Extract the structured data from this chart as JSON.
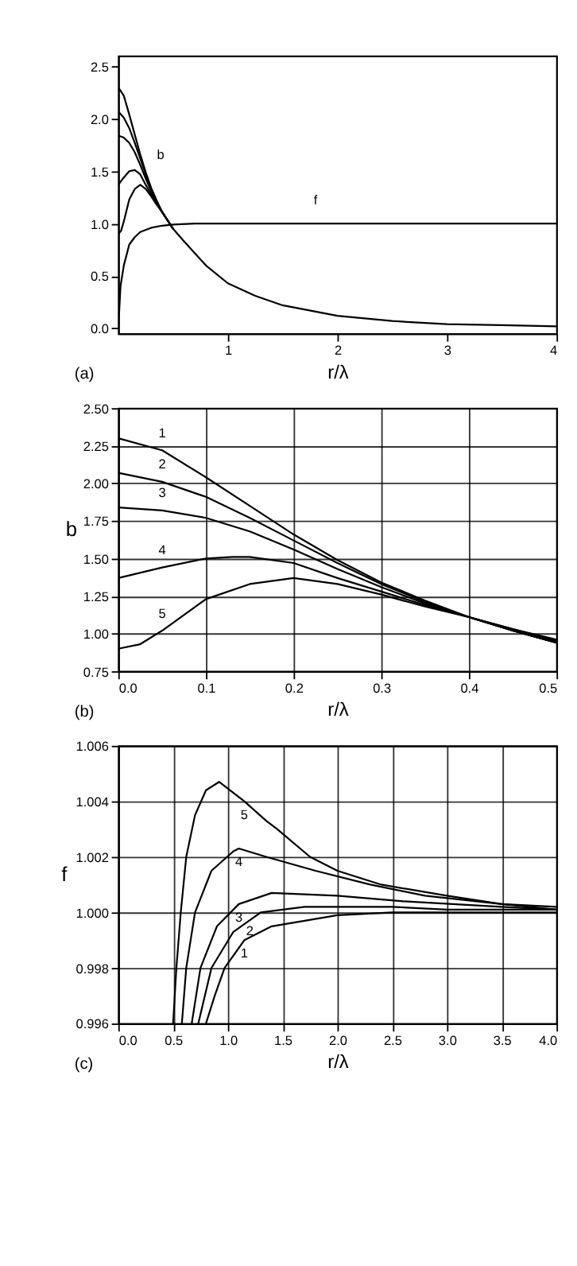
{
  "chart_data": [
    {
      "type": "line",
      "xlabel": "r/λ",
      "xlim": [
        0,
        4
      ],
      "xticks": [
        1,
        2,
        3,
        4
      ],
      "ylim": [
        -0.05,
        2.6
      ],
      "yticks": [
        {
          "value": 0,
          "label": "0.0"
        },
        {
          "value": 0.5,
          "label": "0.5"
        },
        {
          "value": 1,
          "label": "1.0"
        },
        {
          "value": 1.5,
          "label": "1.5"
        },
        {
          "value": 2,
          "label": "2.0"
        },
        {
          "value": 2.5,
          "label": "2.5"
        }
      ],
      "grid": false,
      "series": [
        {
          "color": "#000000",
          "x": [
            0,
            0.05,
            0.1,
            0.15,
            0.2,
            0.25,
            0.3,
            0.35,
            0.4,
            0.5,
            0.6,
            0.8,
            1.0,
            1.25,
            1.5,
            2.0,
            2.5,
            3.0,
            3.5,
            4.0
          ],
          "values": [
            2.3,
            2.22,
            2.04,
            1.85,
            1.66,
            1.49,
            1.34,
            1.22,
            1.11,
            0.95,
            0.83,
            0.6,
            0.43,
            0.31,
            0.22,
            0.12,
            0.07,
            0.04,
            0.03,
            0.02
          ]
        },
        {
          "color": "#000000",
          "x": [
            0,
            0.05,
            0.1,
            0.15,
            0.2,
            0.25,
            0.3,
            0.35,
            0.4,
            0.5
          ],
          "values": [
            2.07,
            2.01,
            1.91,
            1.77,
            1.62,
            1.47,
            1.33,
            1.21,
            1.11,
            0.95
          ]
        },
        {
          "color": "#000000",
          "x": [
            0,
            0.05,
            0.1,
            0.15,
            0.2,
            0.25,
            0.3,
            0.35,
            0.4,
            0.5
          ],
          "values": [
            1.84,
            1.82,
            1.77,
            1.68,
            1.56,
            1.43,
            1.31,
            1.2,
            1.11,
            0.95
          ]
        },
        {
          "color": "#000000",
          "x": [
            0,
            0.05,
            0.1,
            0.15,
            0.2,
            0.25,
            0.3,
            0.35,
            0.4,
            0.5
          ],
          "values": [
            1.37,
            1.44,
            1.5,
            1.51,
            1.47,
            1.37,
            1.28,
            1.19,
            1.11,
            0.95
          ]
        },
        {
          "color": "#000000",
          "x": [
            0,
            0.025,
            0.05,
            0.1,
            0.15,
            0.2,
            0.25,
            0.3,
            0.35,
            0.4,
            0.5
          ],
          "values": [
            0.9,
            0.93,
            1.02,
            1.23,
            1.33,
            1.37,
            1.33,
            1.26,
            1.18,
            1.11,
            0.95
          ]
        },
        {
          "color": "#000000",
          "x": [
            0,
            0.02,
            0.05,
            0.1,
            0.15,
            0.2,
            0.3,
            0.4,
            0.5,
            0.7,
            1.0,
            2.0,
            4.0
          ],
          "values": [
            0,
            0.4,
            0.6,
            0.8,
            0.87,
            0.92,
            0.96,
            0.98,
            0.99,
            1.0,
            1.0,
            1.0,
            1.0
          ]
        }
      ],
      "annotations": [
        {
          "text": "b",
          "x": 0.2,
          "y": 1.66
        },
        {
          "text": "f",
          "x": 1.8,
          "y": 1.0
        },
        "(a)"
      ]
    },
    {
      "type": "line",
      "xlabel": "r/λ",
      "ylabel": "b",
      "xlim": [
        0,
        0.5
      ],
      "xticks": [
        {
          "value": 0,
          "label": "0.0"
        },
        0.1,
        0.2,
        0.3,
        0.4,
        0.5
      ],
      "ylim": [
        0.75,
        2.5
      ],
      "yticks": [
        0.75,
        {
          "value": 1,
          "label": "1.00"
        },
        1.25,
        {
          "value": 1.5,
          "label": "1.50"
        },
        1.75,
        {
          "value": 2,
          "label": "2.00"
        },
        2.25,
        {
          "value": 2.5,
          "label": "2.50"
        }
      ],
      "grid": true,
      "series": [
        {
          "color": "#000000",
          "x": [
            0,
            0.05,
            0.1,
            0.15,
            0.2,
            0.25,
            0.3,
            0.35,
            0.4,
            0.45,
            0.5
          ],
          "values": [
            2.3,
            2.22,
            2.04,
            1.85,
            1.66,
            1.49,
            1.34,
            1.22,
            1.11,
            1.02,
            0.94
          ]
        },
        {
          "color": "#000000",
          "x": [
            0,
            0.05,
            0.1,
            0.15,
            0.2,
            0.25,
            0.3,
            0.35,
            0.4,
            0.45,
            0.5
          ],
          "values": [
            2.07,
            2.01,
            1.91,
            1.77,
            1.62,
            1.47,
            1.33,
            1.21,
            1.11,
            1.02,
            0.94
          ]
        },
        {
          "color": "#000000",
          "x": [
            0,
            0.05,
            0.1,
            0.15,
            0.2,
            0.25,
            0.3,
            0.35,
            0.4,
            0.45,
            0.5
          ],
          "values": [
            1.84,
            1.82,
            1.77,
            1.68,
            1.56,
            1.43,
            1.31,
            1.2,
            1.11,
            1.02,
            0.94
          ]
        },
        {
          "color": "#000000",
          "x": [
            0,
            0.05,
            0.1,
            0.13,
            0.15,
            0.2,
            0.25,
            0.3,
            0.35,
            0.4,
            0.45,
            0.5
          ],
          "values": [
            1.37,
            1.44,
            1.5,
            1.51,
            1.51,
            1.47,
            1.37,
            1.28,
            1.19,
            1.11,
            1.03,
            0.95
          ]
        },
        {
          "color": "#000000",
          "x": [
            0,
            0.025,
            0.05,
            0.1,
            0.15,
            0.2,
            0.25,
            0.3,
            0.35,
            0.4,
            0.45,
            0.5
          ],
          "values": [
            0.9,
            0.93,
            1.02,
            1.23,
            1.33,
            1.37,
            1.33,
            1.26,
            1.18,
            1.11,
            1.03,
            0.96
          ]
        }
      ],
      "annotations": [
        {
          "text": "1",
          "x": 0.05,
          "y": 2.22
        },
        {
          "text": "2",
          "x": 0.05,
          "y": 2.01
        },
        {
          "text": "3",
          "x": 0.05,
          "y": 1.82
        },
        {
          "text": "4",
          "x": 0.05,
          "y": 1.44
        },
        {
          "text": "5",
          "x": 0.05,
          "y": 1.02
        },
        "(b)"
      ]
    },
    {
      "type": "line",
      "xlabel": "r/λ",
      "ylabel": "f",
      "xlim": [
        0,
        4
      ],
      "xticks": [
        {
          "value": 0,
          "label": "0.0"
        },
        0.5,
        {
          "value": 1,
          "label": "1.0"
        },
        1.5,
        {
          "value": 2,
          "label": "2.0"
        },
        2.5,
        {
          "value": 3,
          "label": "3.0"
        },
        3.5,
        {
          "value": 4,
          "label": "4.0"
        }
      ],
      "ylim": [
        0.996,
        1.006
      ],
      "yticks": [
        0.996,
        0.998,
        {
          "value": 1,
          "label": "1.000"
        },
        1.002,
        1.004,
        1.006
      ],
      "grid": true,
      "series": [
        {
          "color": "#000000",
          "x": [
            0.8,
            0.88,
            0.97,
            1.15,
            1.4,
            2.0,
            2.5,
            3.0,
            4.0
          ],
          "values": [
            0.996,
            0.997,
            0.998,
            0.999,
            0.9995,
            0.9999,
            1.0,
            1.0,
            1.0
          ]
        },
        {
          "color": "#000000",
          "x": [
            0.73,
            0.85,
            1.05,
            1.3,
            1.7,
            2.5,
            3.0,
            4.0
          ],
          "values": [
            0.996,
            0.998,
            0.9993,
            1.0,
            1.0002,
            1.0002,
            1.0001,
            1.0001
          ]
        },
        {
          "color": "#000000",
          "x": [
            0.67,
            0.75,
            0.9,
            1.1,
            1.4,
            2.0,
            2.6,
            3.5,
            4.0
          ],
          "values": [
            0.996,
            0.998,
            0.9995,
            1.0003,
            1.0007,
            1.0006,
            1.0004,
            1.0002,
            1.0001
          ]
        },
        {
          "color": "#000000",
          "x": [
            0.58,
            0.62,
            0.7,
            0.85,
            1.05,
            1.1,
            1.35,
            1.8,
            2.3,
            2.8,
            3.5,
            4.0
          ],
          "values": [
            0.996,
            0.998,
            1.0,
            1.0015,
            1.0022,
            1.0023,
            1.002,
            1.0015,
            1.001,
            1.0006,
            1.0003,
            1.0001
          ]
        },
        {
          "color": "#000000",
          "x": [
            0.5,
            0.53,
            0.57,
            0.62,
            0.7,
            0.8,
            0.92,
            1.15,
            1.35,
            1.45,
            1.75,
            2.0,
            2.4,
            3.0,
            3.5,
            4.0
          ],
          "values": [
            0.996,
            0.998,
            1.0,
            1.002,
            1.0035,
            1.0044,
            1.0047,
            1.004,
            1.0033,
            1.003,
            1.002,
            1.0015,
            1.001,
            1.0006,
            1.0003,
            1.0002
          ]
        }
      ],
      "annotations": [
        {
          "text": "1",
          "x": 1.15,
          "y": 0.999
        },
        {
          "text": "2",
          "x": 1.2,
          "y": 0.9998
        },
        {
          "text": "3",
          "x": 1.1,
          "y": 1.0003
        },
        {
          "text": "4",
          "x": 1.1,
          "y": 1.0023
        },
        {
          "text": "5",
          "x": 1.15,
          "y": 1.004
        },
        "(c)"
      ]
    }
  ]
}
